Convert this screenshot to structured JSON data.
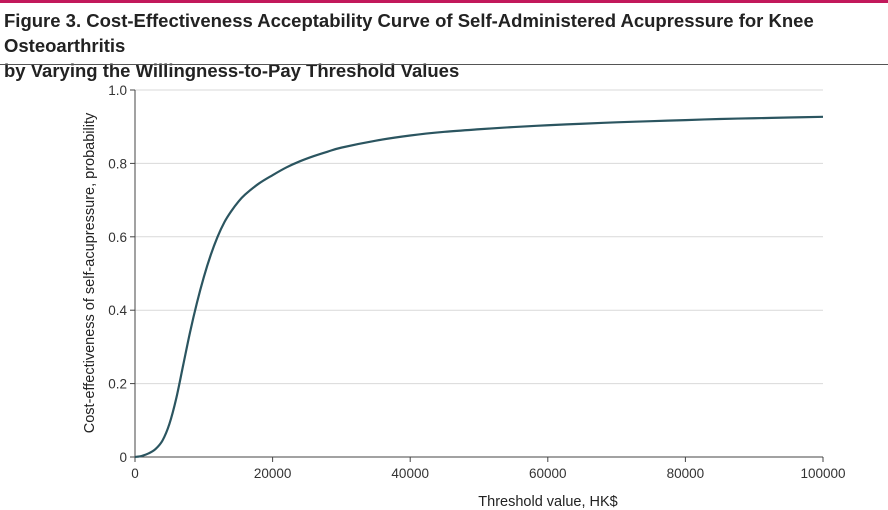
{
  "figure": {
    "title_line1": "Figure 3. Cost-Effectiveness Acceptability Curve of Self-Administered Acupressure for Knee Osteoarthritis",
    "title_line2": "by Varying the Willingness-to-Pay Threshold Values"
  },
  "chart_data": {
    "type": "line",
    "title": "Cost-Effectiveness Acceptability Curve of Self-Administered Acupressure for Knee Osteoarthritis by Varying the Willingness-to-Pay Threshold Values",
    "xlabel": "Threshold value, HK$",
    "ylabel": "Cost-effectiveness of self-acupressure, probability",
    "xlim": [
      0,
      100000
    ],
    "ylim": [
      0,
      1.0
    ],
    "x_ticks": [
      0,
      20000,
      40000,
      60000,
      80000,
      100000
    ],
    "x_tick_labels": [
      "0",
      "20000",
      "40000",
      "60000",
      "80000",
      "100000"
    ],
    "y_ticks": [
      0,
      0.2,
      0.4,
      0.6,
      0.8,
      1.0
    ],
    "y_tick_labels": [
      "0",
      "0.2",
      "0.4",
      "0.6",
      "0.8",
      "1.0"
    ],
    "grid": true,
    "line_color": "#2b5560",
    "accent_color": "#c2185b",
    "series": [
      {
        "x": [
          0,
          1000,
          2000,
          3000,
          4000,
          5000,
          6000,
          7000,
          8000,
          9000,
          10000,
          11000,
          12000,
          13000,
          14000,
          15000,
          16000,
          18000,
          20000,
          22000,
          24000,
          26000,
          28000,
          30000,
          35000,
          40000,
          45000,
          50000,
          55000,
          60000,
          65000,
          70000,
          75000,
          80000,
          85000,
          90000,
          95000,
          100000
        ],
        "y": [
          0.0,
          0.003,
          0.01,
          0.022,
          0.045,
          0.09,
          0.16,
          0.25,
          0.34,
          0.42,
          0.49,
          0.55,
          0.6,
          0.64,
          0.67,
          0.695,
          0.715,
          0.745,
          0.768,
          0.789,
          0.806,
          0.82,
          0.832,
          0.843,
          0.862,
          0.876,
          0.886,
          0.893,
          0.899,
          0.904,
          0.908,
          0.912,
          0.915,
          0.918,
          0.921,
          0.923,
          0.925,
          0.927
        ]
      }
    ]
  }
}
